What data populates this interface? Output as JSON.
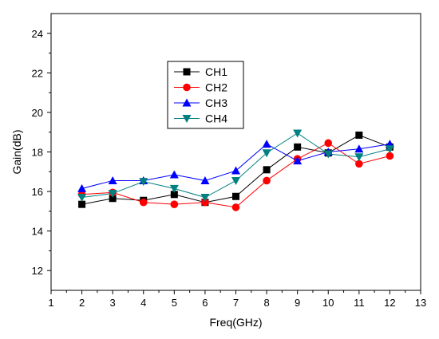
{
  "chart_data": {
    "type": "line",
    "title": "",
    "xlabel": "Freq(GHz)",
    "ylabel": "Gain(dB)",
    "xlim": [
      1,
      13
    ],
    "ylim": [
      11,
      25
    ],
    "x_ticks": [
      1,
      2,
      3,
      4,
      5,
      6,
      7,
      8,
      9,
      10,
      11,
      12,
      13
    ],
    "y_ticks": [
      12,
      14,
      16,
      18,
      20,
      22,
      24
    ],
    "grid": false,
    "legend_position": "upper-left",
    "x": [
      2,
      3,
      4,
      5,
      6,
      7,
      8,
      9,
      10,
      11,
      12
    ],
    "series": [
      {
        "name": "CH1",
        "color": "#000000",
        "marker": "square",
        "values": [
          15.35,
          15.65,
          15.55,
          15.85,
          15.45,
          15.75,
          17.1,
          18.25,
          17.95,
          18.85,
          18.25
        ]
      },
      {
        "name": "CH2",
        "color": "#ff0000",
        "marker": "circle",
        "values": [
          15.85,
          15.95,
          15.45,
          15.35,
          15.45,
          15.2,
          16.55,
          17.65,
          18.45,
          17.4,
          17.8
        ]
      },
      {
        "name": "CH3",
        "color": "#0000ff",
        "marker": "triangle-up",
        "values": [
          16.15,
          16.55,
          16.55,
          16.85,
          16.55,
          17.05,
          18.4,
          17.55,
          18.0,
          18.15,
          18.4
        ]
      },
      {
        "name": "CH4",
        "color": "#008080",
        "marker": "triangle-down",
        "values": [
          15.7,
          15.9,
          16.5,
          16.15,
          15.7,
          16.55,
          17.95,
          18.95,
          17.9,
          17.75,
          18.15
        ]
      }
    ]
  }
}
